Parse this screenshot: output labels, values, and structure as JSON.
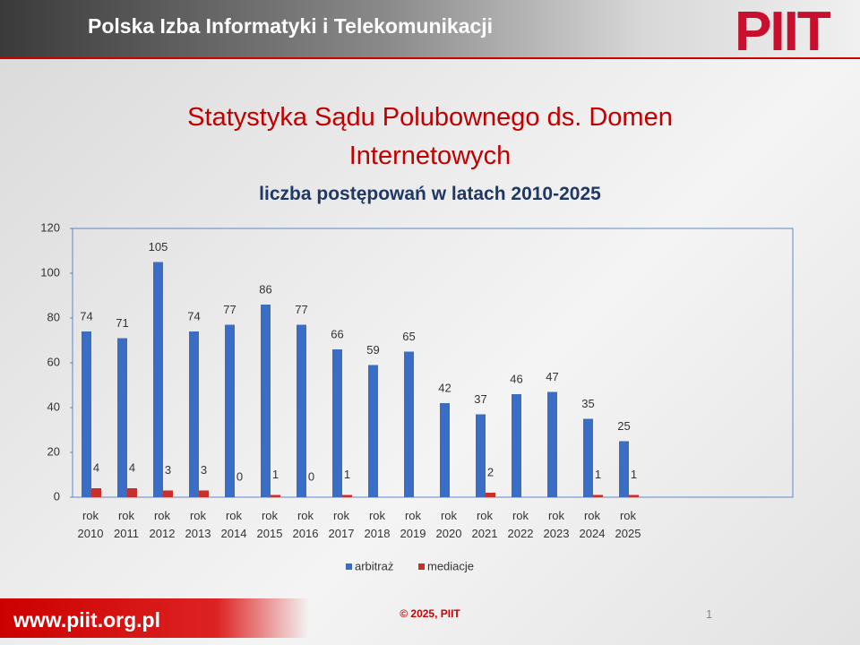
{
  "header": {
    "title": "Polska Izba Informatyki i Telekomunikacji",
    "logo": "PIIT"
  },
  "footer": {
    "url": "www.piit.org.pl",
    "copyright": "© 2025, PIIT",
    "page": "1"
  },
  "chart_data": {
    "type": "bar",
    "title": "Statystyka Sądu Polubownego ds. Domen Internetowych",
    "subtitle": "liczba postępowań w latach 2010-2025",
    "categories": [
      "rok 2010",
      "rok 2011",
      "rok 2012",
      "rok 2013",
      "rok 2014",
      "rok 2015",
      "rok 2016",
      "rok 2017",
      "rok 2018",
      "rok 2019",
      "rok 2020",
      "rok 2021",
      "rok 2022",
      "rok 2023",
      "rok 2024",
      "rok 2025"
    ],
    "series": [
      {
        "name": "arbitraż",
        "color": "#3a6ec6",
        "values": [
          74,
          71,
          105,
          74,
          77,
          86,
          77,
          66,
          59,
          65,
          42,
          37,
          46,
          47,
          35,
          25
        ]
      },
      {
        "name": "mediacje",
        "color": "#c8302c",
        "values": [
          4,
          4,
          3,
          3,
          0,
          1,
          0,
          1,
          null,
          null,
          null,
          2,
          null,
          null,
          1,
          1
        ]
      }
    ],
    "ylim": [
      0,
      120
    ],
    "yticks": [
      0,
      20,
      40,
      60,
      80,
      100,
      120
    ],
    "grid": false,
    "legend": "bottom"
  }
}
